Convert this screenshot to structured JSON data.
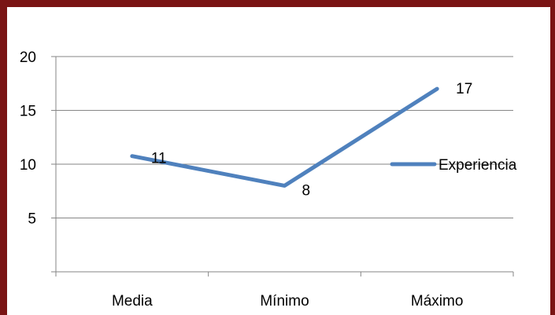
{
  "chart_data": {
    "type": "line",
    "title": "",
    "xlabel": "",
    "ylabel": "",
    "categories": [
      "Media",
      "Mínimo",
      "Máximo"
    ],
    "series": [
      {
        "name": "Experiencia",
        "values": [
          10.75,
          8,
          17
        ],
        "data_labels": [
          "11",
          "8",
          "17"
        ]
      }
    ],
    "yticks": [
      "5",
      "10",
      "15",
      "20"
    ],
    "ylim": [
      0,
      20
    ],
    "grid": true,
    "legend_position": "right",
    "colors": {
      "series": "#4f81bd",
      "grid": "#868686",
      "frame": "#7a1414"
    }
  }
}
